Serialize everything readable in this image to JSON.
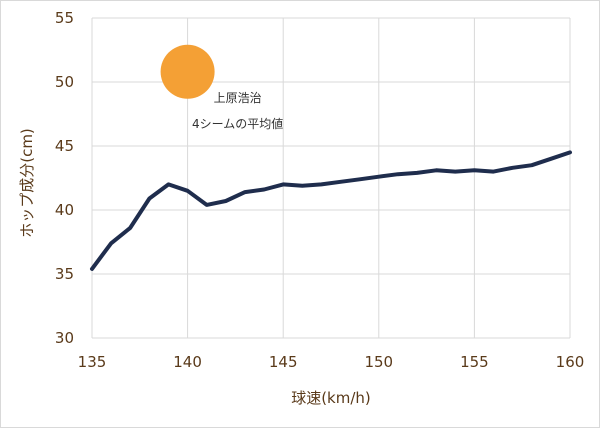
{
  "chart_data": {
    "type": "line",
    "xlabel": "球速(km/h)",
    "ylabel": "ホップ成分(cm)",
    "xlim": [
      135,
      160
    ],
    "ylim": [
      30,
      55
    ],
    "x_ticks": [
      "135",
      "140",
      "145",
      "150",
      "155",
      "160"
    ],
    "y_ticks": [
      "30",
      "35",
      "40",
      "45",
      "50",
      "55"
    ],
    "grid": true,
    "series": [
      {
        "color": "#1f2d4d",
        "points": [
          [
            135,
            35.4
          ],
          [
            136,
            37.4
          ],
          [
            137,
            38.6
          ],
          [
            138,
            40.9
          ],
          [
            139,
            42.0
          ],
          [
            140,
            41.5
          ],
          [
            141,
            40.4
          ],
          [
            142,
            40.7
          ],
          [
            143,
            41.4
          ],
          [
            144,
            41.6
          ],
          [
            145,
            42.0
          ],
          [
            146,
            41.9
          ],
          [
            147,
            42.0
          ],
          [
            148,
            42.2
          ],
          [
            149,
            42.4
          ],
          [
            150,
            42.6
          ],
          [
            151,
            42.8
          ],
          [
            152,
            42.9
          ],
          [
            153,
            43.1
          ],
          [
            154,
            43.0
          ],
          [
            155,
            43.1
          ],
          [
            156,
            43.0
          ],
          [
            157,
            43.3
          ],
          [
            158,
            43.5
          ],
          [
            159,
            44.0
          ],
          [
            160,
            44.5
          ]
        ]
      }
    ],
    "highlight": {
      "x": 140,
      "y": 50.8,
      "color": "#f4a035",
      "label_lines": [
        "上原浩治",
        "4シームの平均値"
      ]
    }
  }
}
